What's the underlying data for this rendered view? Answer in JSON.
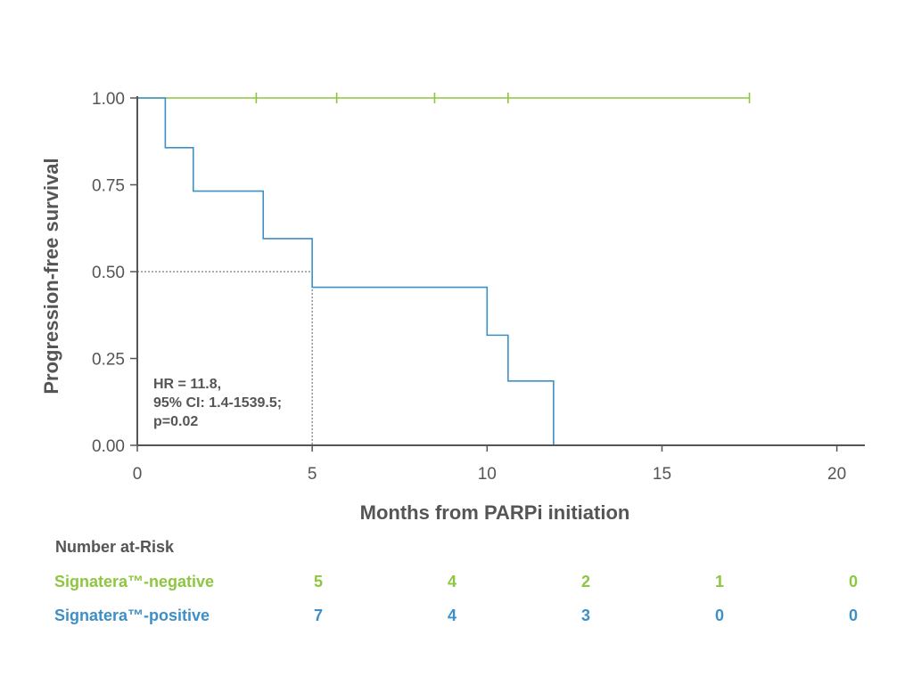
{
  "chart_data": {
    "type": "line",
    "xlabel": "Months from PARPi initiation",
    "ylabel": "Progression-free survival",
    "xlim": [
      0,
      20.8
    ],
    "ylim": [
      0,
      1
    ],
    "x_ticks": [
      "0",
      "5",
      "10",
      "15",
      "20"
    ],
    "y_ticks": [
      "0.00",
      "0.25",
      "0.50",
      "0.75",
      "1.00"
    ],
    "grid": false,
    "colors": {
      "negative": "#8dc63f",
      "positive": "#3d8fc6"
    },
    "series": [
      {
        "name": "Signatera™-negative",
        "steps": [
          [
            0,
            1.0
          ],
          [
            17.5,
            1.0
          ]
        ],
        "censors": [
          3.4,
          5.7,
          8.5,
          10.6,
          17.5
        ]
      },
      {
        "name": "Signatera™-positive",
        "steps": [
          [
            0,
            1.0
          ],
          [
            0.8,
            0.857
          ],
          [
            1.6,
            0.732
          ],
          [
            3.6,
            0.595
          ],
          [
            5.0,
            0.455
          ],
          [
            10.0,
            0.317
          ],
          [
            10.6,
            0.185
          ],
          [
            11.9,
            0.0
          ]
        ],
        "censors": []
      }
    ],
    "median_marker": {
      "x": 5.0,
      "y": 0.5
    },
    "annotation": [
      "HR = 11.8,",
      "95% CI: 1.4-1539.5;",
      "p=0.02"
    ]
  },
  "risk_table": {
    "title": "Number at-Risk",
    "rows": [
      {
        "label": "Signatera™-negative",
        "values": [
          "5",
          "4",
          "2",
          "1",
          "0"
        ]
      },
      {
        "label": "Signatera™-positive",
        "values": [
          "7",
          "4",
          "3",
          "0",
          "0"
        ]
      }
    ]
  }
}
